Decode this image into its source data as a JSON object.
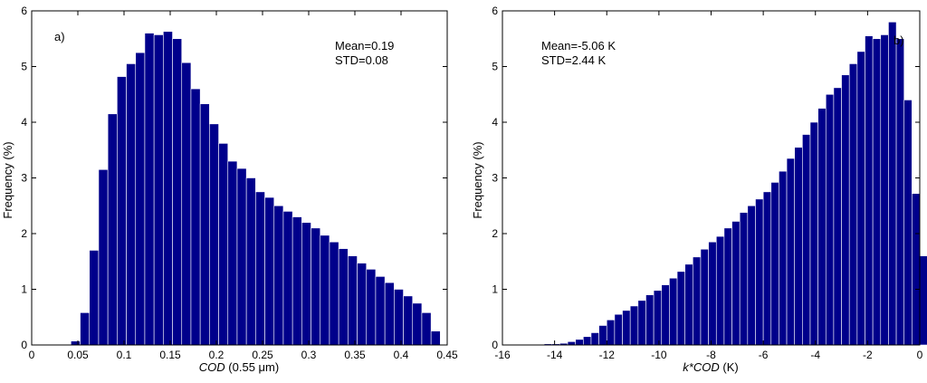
{
  "chart_data": [
    {
      "type": "bar",
      "panel_label": "a)",
      "xlabel": "COD (0.55 μm)",
      "ylabel": "Frequency (%)",
      "xlim": [
        0,
        0.45
      ],
      "ylim": [
        0,
        6
      ],
      "xticks": [
        "0",
        "0.05",
        "0.1",
        "0.15",
        "0.2",
        "0.25",
        "0.3",
        "0.35",
        "0.4",
        "0.45"
      ],
      "yticks": [
        "0",
        "1",
        "2",
        "3",
        "4",
        "5",
        "6"
      ],
      "bin_start": 0.0425,
      "bin_width": 0.01,
      "values": [
        0.07,
        0.58,
        1.7,
        3.15,
        4.15,
        4.82,
        5.05,
        5.25,
        5.6,
        5.57,
        5.63,
        5.5,
        5.07,
        4.6,
        4.33,
        3.97,
        3.62,
        3.3,
        3.17,
        3.0,
        2.75,
        2.65,
        2.5,
        2.4,
        2.3,
        2.2,
        2.1,
        1.97,
        1.85,
        1.73,
        1.6,
        1.47,
        1.36,
        1.23,
        1.12,
        1.0,
        0.88,
        0.75,
        0.58,
        0.25
      ],
      "annotations": [
        "Mean=0.19",
        "STD=0.08"
      ]
    },
    {
      "type": "bar",
      "panel_label": "b)",
      "xlabel": "k*COD (K)",
      "ylabel": "Frequency (%)",
      "xlim": [
        -16,
        0
      ],
      "ylim": [
        0,
        6
      ],
      "xticks": [
        "-16",
        "-14",
        "-12",
        "-10",
        "-8",
        "-6",
        "-4",
        "-2",
        "0"
      ],
      "yticks": [
        "0",
        "1",
        "2",
        "3",
        "4",
        "5",
        "6"
      ],
      "bin_start": -14.4,
      "bin_width": 0.3,
      "values": [
        0.02,
        0.02,
        0.03,
        0.06,
        0.1,
        0.15,
        0.22,
        0.35,
        0.45,
        0.55,
        0.62,
        0.7,
        0.8,
        0.9,
        0.98,
        1.08,
        1.2,
        1.32,
        1.45,
        1.58,
        1.72,
        1.85,
        1.95,
        2.1,
        2.22,
        2.38,
        2.5,
        2.62,
        2.75,
        2.92,
        3.12,
        3.35,
        3.55,
        3.78,
        4.0,
        4.25,
        4.5,
        4.62,
        4.85,
        5.05,
        5.27,
        5.55,
        5.5,
        5.57,
        5.8,
        5.5,
        4.4,
        2.72,
        1.6,
        0.43,
        0.03
      ],
      "annotations": [
        "Mean=-5.06 K",
        "STD=2.44 K"
      ]
    }
  ],
  "colors": {
    "bar": "#00008b",
    "axis": "#000000"
  }
}
